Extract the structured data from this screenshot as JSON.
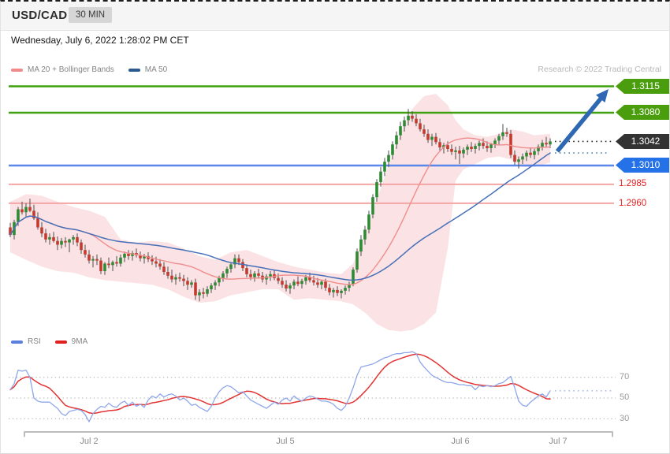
{
  "widget": {
    "symbol": "USD/CAD",
    "timeframe_badge": "30 MIN",
    "timestamp": "Wednesday, July 6, 2022 1:28:02 PM CET",
    "attribution": "Research © 2022 Trading Central"
  },
  "price_panel": {
    "legend": [
      {
        "label": "MA 20 + Bollinger Bands",
        "swatch_color": "#f18a8a"
      },
      {
        "label": "MA 50",
        "swatch_color": "#2b5a8f"
      }
    ],
    "tags": {
      "r2": "1.3115",
      "r1": "1.3080",
      "last": "1.3042",
      "s1": "1.3010",
      "s2": "1.2985",
      "s3": "1.2960"
    }
  },
  "rsi_panel": {
    "legend": [
      {
        "label": "RSI",
        "swatch_color": "#5b7fdd"
      },
      {
        "label": "9MA",
        "swatch_color": "#e01f1f"
      }
    ],
    "scale_labels": [
      "70",
      "50",
      "30"
    ]
  },
  "x_axis_labels": [
    "Jul 2",
    "Jul 5",
    "Jul 6",
    "Jul 7"
  ],
  "colors": {
    "up": "#2e8b33",
    "down": "#c43a2f",
    "wick": "#4d4d4d",
    "band": "#f6bfc3",
    "ma20": "#ef8d8d",
    "ma50": "#456fb8",
    "resistance": "#3fa00f",
    "support_blue": "#5b86ea",
    "support_pink": "#f4a5a5",
    "tag_green": "#4a9e0d",
    "tag_black": "#333333",
    "tag_blue": "#2471e8",
    "label_red": "#e32222",
    "arrow": "#2e68b2",
    "rsi_line": "#8fa7ea",
    "rsi_ma": "#e23333",
    "grid": "#a8a8a8",
    "current_dotted": "#2b2b2b",
    "ma50_dotted": "#4f86ad",
    "rsi_dotted": "#a9bdeb",
    "axis": "#bdbdbd"
  },
  "chart_data": {
    "type": "candlestick",
    "instrument": "USD/CAD",
    "interval": "30 MIN",
    "title": "USD/CAD intraday technical analysis",
    "resistance_levels": [
      1.3115,
      1.308
    ],
    "support_levels": [
      1.301,
      1.2985,
      1.296
    ],
    "last_price": 1.3042,
    "rsi_current": 57,
    "indicators": {
      "ma20_bollinger": {
        "period": 20,
        "stddev": 2
      },
      "ma50": {
        "period": 50
      },
      "rsi": {
        "grid": [
          70,
          50,
          30
        ],
        "ma_period": 9
      }
    },
    "forecast_arrow": {
      "direction": "up",
      "target": 1.3115
    },
    "x_labels": [
      {
        "text": "Jul 2",
        "index": 20
      },
      {
        "text": "Jul 5",
        "index": 70
      },
      {
        "text": "Jul 6",
        "index": 114
      },
      {
        "text": "Jul 7",
        "index": 139
      }
    ],
    "ylim": [
      1.279,
      1.315
    ],
    "candles": [
      [
        1.2928,
        1.2934,
        1.2915,
        1.2918
      ],
      [
        1.2918,
        1.2938,
        1.2912,
        1.2935
      ],
      [
        1.2935,
        1.2955,
        1.293,
        1.2952
      ],
      [
        1.2952,
        1.2962,
        1.2945,
        1.2948
      ],
      [
        1.2948,
        1.296,
        1.2942,
        1.2955
      ],
      [
        1.2955,
        1.2966,
        1.2948,
        1.295
      ],
      [
        1.295,
        1.2958,
        1.2938,
        1.294
      ],
      [
        1.294,
        1.2948,
        1.2925,
        1.2928
      ],
      [
        1.2928,
        1.2935,
        1.2915,
        1.292
      ],
      [
        1.292,
        1.2926,
        1.2908,
        1.2912
      ],
      [
        1.2912,
        1.292,
        1.2905,
        1.2915
      ],
      [
        1.2915,
        1.2922,
        1.2908,
        1.291
      ],
      [
        1.291,
        1.2916,
        1.2898,
        1.2905
      ],
      [
        1.2905,
        1.2914,
        1.29,
        1.291
      ],
      [
        1.291,
        1.2915,
        1.2902,
        1.2908
      ],
      [
        1.2908,
        1.2913,
        1.2895,
        1.2912
      ],
      [
        1.2912,
        1.2918,
        1.2905,
        1.2915
      ],
      [
        1.2915,
        1.292,
        1.2903,
        1.2908
      ],
      [
        1.2908,
        1.2912,
        1.2893,
        1.2898
      ],
      [
        1.2898,
        1.2905,
        1.2888,
        1.2892
      ],
      [
        1.2892,
        1.2898,
        1.288,
        1.2884
      ],
      [
        1.2884,
        1.289,
        1.2875,
        1.2886
      ],
      [
        1.2886,
        1.2892,
        1.2878,
        1.2884
      ],
      [
        1.2884,
        1.2888,
        1.2866,
        1.287
      ],
      [
        1.287,
        1.2882,
        1.2865,
        1.288
      ],
      [
        1.288,
        1.2888,
        1.2874,
        1.2878
      ],
      [
        1.2878,
        1.2884,
        1.287,
        1.2882
      ],
      [
        1.2882,
        1.289,
        1.2876,
        1.288
      ],
      [
        1.288,
        1.2892,
        1.2876,
        1.2888
      ],
      [
        1.2888,
        1.2896,
        1.2882,
        1.2893
      ],
      [
        1.2893,
        1.2898,
        1.2885,
        1.289
      ],
      [
        1.289,
        1.2897,
        1.2884,
        1.2894
      ],
      [
        1.2894,
        1.29,
        1.2888,
        1.2891
      ],
      [
        1.2891,
        1.2896,
        1.2883,
        1.2887
      ],
      [
        1.2887,
        1.2893,
        1.288,
        1.289
      ],
      [
        1.289,
        1.2895,
        1.2882,
        1.2886
      ],
      [
        1.2886,
        1.2891,
        1.2878,
        1.2883
      ],
      [
        1.2883,
        1.2889,
        1.2875,
        1.288
      ],
      [
        1.288,
        1.2886,
        1.2872,
        1.2876
      ],
      [
        1.2876,
        1.2882,
        1.2865,
        1.2869
      ],
      [
        1.2869,
        1.2876,
        1.286,
        1.2864
      ],
      [
        1.2864,
        1.2872,
        1.2855,
        1.2859
      ],
      [
        1.2859,
        1.2866,
        1.2852,
        1.2862
      ],
      [
        1.2862,
        1.2868,
        1.2856,
        1.286
      ],
      [
        1.286,
        1.2865,
        1.285,
        1.2857
      ],
      [
        1.2857,
        1.2862,
        1.2845,
        1.2852
      ],
      [
        1.2852,
        1.2858,
        1.2848,
        1.2855
      ],
      [
        1.2855,
        1.286,
        1.2832,
        1.2838
      ],
      [
        1.2838,
        1.2846,
        1.283,
        1.2842
      ],
      [
        1.2842,
        1.2848,
        1.2834,
        1.284
      ],
      [
        1.284,
        1.285,
        1.2836,
        1.2846
      ],
      [
        1.2846,
        1.2854,
        1.2841,
        1.2851
      ],
      [
        1.2851,
        1.2858,
        1.2845,
        1.2855
      ],
      [
        1.2855,
        1.2864,
        1.285,
        1.2861
      ],
      [
        1.2861,
        1.287,
        1.2856,
        1.2867
      ],
      [
        1.2867,
        1.2876,
        1.2861,
        1.2873
      ],
      [
        1.2873,
        1.2882,
        1.2868,
        1.2879
      ],
      [
        1.2879,
        1.2892,
        1.2874,
        1.2887
      ],
      [
        1.2887,
        1.2892,
        1.2878,
        1.2882
      ],
      [
        1.2882,
        1.2886,
        1.287,
        1.2874
      ],
      [
        1.2874,
        1.2879,
        1.2862,
        1.2866
      ],
      [
        1.2866,
        1.2872,
        1.2858,
        1.2862
      ],
      [
        1.2862,
        1.287,
        1.2856,
        1.2867
      ],
      [
        1.2867,
        1.2873,
        1.286,
        1.2864
      ],
      [
        1.2864,
        1.2869,
        1.2855,
        1.2859
      ],
      [
        1.2859,
        1.2866,
        1.2852,
        1.2863
      ],
      [
        1.2863,
        1.287,
        1.2857,
        1.2866
      ],
      [
        1.2866,
        1.2871,
        1.2858,
        1.2861
      ],
      [
        1.2861,
        1.2867,
        1.2853,
        1.2857
      ],
      [
        1.2857,
        1.2862,
        1.2848,
        1.2852
      ],
      [
        1.2852,
        1.2858,
        1.2843,
        1.2847
      ],
      [
        1.2847,
        1.2854,
        1.284,
        1.2851
      ],
      [
        1.2851,
        1.2859,
        1.2846,
        1.2856
      ],
      [
        1.2856,
        1.2863,
        1.285,
        1.2853
      ],
      [
        1.2853,
        1.286,
        1.2847,
        1.2857
      ],
      [
        1.2857,
        1.2865,
        1.2852,
        1.2862
      ],
      [
        1.2862,
        1.2868,
        1.2855,
        1.2858
      ],
      [
        1.2858,
        1.2864,
        1.2851,
        1.2855
      ],
      [
        1.2855,
        1.2861,
        1.2848,
        1.2852
      ],
      [
        1.2852,
        1.2858,
        1.2846,
        1.2856
      ],
      [
        1.2856,
        1.286,
        1.2844,
        1.2848
      ],
      [
        1.2848,
        1.2853,
        1.2838,
        1.2842
      ],
      [
        1.2842,
        1.2848,
        1.2835,
        1.2845
      ],
      [
        1.2845,
        1.285,
        1.2837,
        1.2841
      ],
      [
        1.2841,
        1.2846,
        1.2834,
        1.2844
      ],
      [
        1.2844,
        1.2851,
        1.2839,
        1.2848
      ],
      [
        1.2848,
        1.2856,
        1.2843,
        1.2853
      ],
      [
        1.2853,
        1.2875,
        1.285,
        1.2872
      ],
      [
        1.2872,
        1.29,
        1.2868,
        1.2896
      ],
      [
        1.2896,
        1.2918,
        1.289,
        1.2912
      ],
      [
        1.2912,
        1.293,
        1.2905,
        1.2925
      ],
      [
        1.2925,
        1.295,
        1.292,
        1.2945
      ],
      [
        1.2945,
        1.2972,
        1.294,
        1.2968
      ],
      [
        1.2968,
        1.2992,
        1.2962,
        1.2988
      ],
      [
        1.2988,
        1.3008,
        1.2982,
        1.3002
      ],
      [
        1.3002,
        1.302,
        1.2996,
        1.3015
      ],
      [
        1.3015,
        1.303,
        1.3008,
        1.3024
      ],
      [
        1.3024,
        1.3042,
        1.3018,
        1.3038
      ],
      [
        1.3038,
        1.3055,
        1.3032,
        1.305
      ],
      [
        1.305,
        1.3068,
        1.3044,
        1.3062
      ],
      [
        1.3062,
        1.3075,
        1.3055,
        1.307
      ],
      [
        1.307,
        1.3085,
        1.3063,
        1.3076
      ],
      [
        1.3076,
        1.3082,
        1.3068,
        1.3072
      ],
      [
        1.3072,
        1.3078,
        1.3062,
        1.3066
      ],
      [
        1.3066,
        1.3072,
        1.3055,
        1.3058
      ],
      [
        1.3058,
        1.3064,
        1.3048,
        1.3052
      ],
      [
        1.3052,
        1.3058,
        1.304,
        1.3044
      ],
      [
        1.3044,
        1.3052,
        1.3036,
        1.3048
      ],
      [
        1.3048,
        1.3053,
        1.3038,
        1.3041
      ],
      [
        1.3041,
        1.3046,
        1.303,
        1.3034
      ],
      [
        1.3034,
        1.304,
        1.3026,
        1.3037
      ],
      [
        1.3037,
        1.3042,
        1.3028,
        1.3032
      ],
      [
        1.3032,
        1.3038,
        1.3024,
        1.3028
      ],
      [
        1.3028,
        1.3035,
        1.3018,
        1.303
      ],
      [
        1.303,
        1.3036,
        1.3012,
        1.3026
      ],
      [
        1.3026,
        1.3034,
        1.302,
        1.3031
      ],
      [
        1.3031,
        1.3038,
        1.3024,
        1.3035
      ],
      [
        1.3035,
        1.3041,
        1.3028,
        1.3032
      ],
      [
        1.3032,
        1.3039,
        1.3026,
        1.3036
      ],
      [
        1.3036,
        1.3043,
        1.303,
        1.304
      ],
      [
        1.304,
        1.3046,
        1.3032,
        1.3036
      ],
      [
        1.3036,
        1.3042,
        1.3028,
        1.3033
      ],
      [
        1.3033,
        1.304,
        1.3027,
        1.3038
      ],
      [
        1.3038,
        1.3046,
        1.3033,
        1.3043
      ],
      [
        1.3043,
        1.3052,
        1.3038,
        1.3049
      ],
      [
        1.3049,
        1.3065,
        1.3044,
        1.3054
      ],
      [
        1.3054,
        1.306,
        1.3048,
        1.3052
      ],
      [
        1.3052,
        1.3057,
        1.302,
        1.3024
      ],
      [
        1.3024,
        1.303,
        1.3011,
        1.3015
      ],
      [
        1.3015,
        1.3022,
        1.3006,
        1.3018
      ],
      [
        1.3018,
        1.3026,
        1.3012,
        1.3022
      ],
      [
        1.3022,
        1.303,
        1.3016,
        1.3027
      ],
      [
        1.3027,
        1.3034,
        1.302,
        1.3024
      ],
      [
        1.3024,
        1.3032,
        1.3018,
        1.3029
      ],
      [
        1.3029,
        1.3038,
        1.3024,
        1.3035
      ],
      [
        1.3035,
        1.3044,
        1.303,
        1.304
      ],
      [
        1.304,
        1.3048,
        1.3034,
        1.3038
      ],
      [
        1.3038,
        1.3046,
        1.3033,
        1.3042
      ]
    ],
    "band_keypoints": [
      [
        0,
        1.2962,
        1.2895
      ],
      [
        4,
        1.2972,
        1.2885
      ],
      [
        8,
        1.297,
        1.2876
      ],
      [
        12,
        1.2962,
        1.287
      ],
      [
        16,
        1.2955,
        1.2868
      ],
      [
        20,
        1.295,
        1.2862
      ],
      [
        24,
        1.2942,
        1.2858
      ],
      [
        28,
        1.2912,
        1.2856
      ],
      [
        32,
        1.2908,
        1.2854
      ],
      [
        36,
        1.291,
        1.2852
      ],
      [
        40,
        1.2908,
        1.2846
      ],
      [
        44,
        1.29,
        1.2836
      ],
      [
        48,
        1.289,
        1.2828
      ],
      [
        52,
        1.2885,
        1.283
      ],
      [
        56,
        1.2895,
        1.2838
      ],
      [
        60,
        1.2898,
        1.2842
      ],
      [
        64,
        1.289,
        1.2846
      ],
      [
        68,
        1.2882,
        1.2846
      ],
      [
        72,
        1.2876,
        1.2832
      ],
      [
        76,
        1.2872,
        1.2834
      ],
      [
        80,
        1.2868,
        1.2832
      ],
      [
        84,
        1.2866,
        1.283
      ],
      [
        87,
        1.288,
        1.2826
      ],
      [
        90,
        1.292,
        1.2815
      ],
      [
        93,
        1.2965,
        1.28
      ],
      [
        96,
        1.301,
        1.2792
      ],
      [
        99,
        1.3052,
        1.279
      ],
      [
        102,
        1.3085,
        1.2792
      ],
      [
        105,
        1.3102,
        1.28
      ],
      [
        108,
        1.3105,
        1.2815
      ],
      [
        111,
        1.309,
        1.29
      ],
      [
        113,
        1.307,
        1.299
      ],
      [
        115,
        1.3058,
        1.3005
      ],
      [
        118,
        1.305,
        1.3012
      ],
      [
        121,
        1.3048,
        1.302
      ],
      [
        124,
        1.3052,
        1.3022
      ],
      [
        127,
        1.3058,
        1.3018
      ],
      [
        130,
        1.3055,
        1.3008
      ],
      [
        133,
        1.305,
        1.3008
      ],
      [
        137,
        1.3052,
        1.3014
      ]
    ],
    "rsi": [
      58,
      64,
      77,
      76,
      77,
      70,
      50,
      47,
      46,
      46,
      46,
      43,
      40,
      35,
      33,
      37,
      38,
      39,
      38,
      34,
      27,
      35,
      39,
      42,
      41,
      45,
      42,
      41,
      45,
      47,
      43,
      46,
      42,
      44,
      41,
      48,
      52,
      50,
      54,
      51,
      53,
      54,
      52,
      48,
      50,
      47,
      43,
      44,
      41,
      39,
      37,
      42,
      50,
      56,
      60,
      62,
      61,
      58,
      55,
      56,
      52,
      48,
      46,
      44,
      42,
      40,
      43,
      46,
      44,
      48,
      50,
      47,
      52,
      49,
      47,
      50,
      52,
      51,
      49,
      47,
      47,
      46,
      44,
      40,
      38,
      42,
      50,
      60,
      72,
      80,
      81,
      82,
      83,
      85,
      87,
      89,
      90,
      92,
      93,
      93,
      94,
      94,
      95,
      93,
      85,
      80,
      76,
      72,
      70,
      68,
      66,
      65,
      65,
      64,
      63,
      63,
      62,
      62,
      58,
      62,
      61,
      62,
      61,
      62,
      64,
      65,
      68,
      71,
      60,
      47,
      43,
      42,
      46,
      49,
      52,
      54,
      51,
      57
    ]
  }
}
